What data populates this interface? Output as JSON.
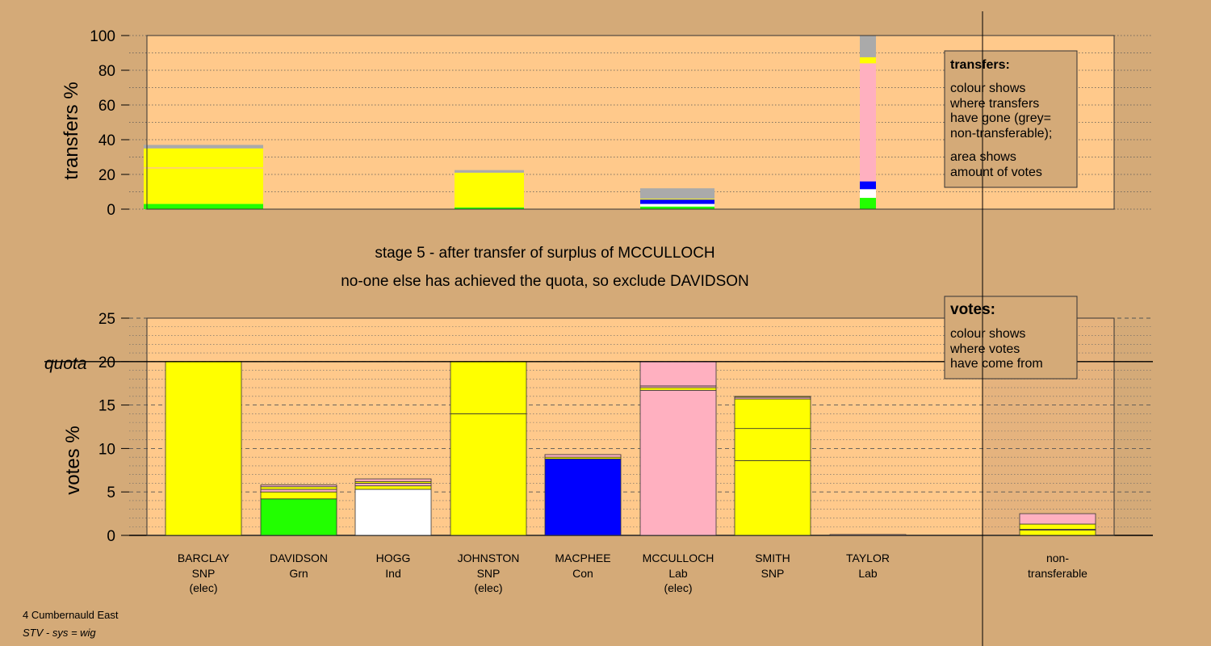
{
  "colors": {
    "background": "#d4aa78",
    "plot_bg": "#ffc98b",
    "SNP": "#ffff00",
    "Grn": "#22ff00",
    "Ind": "#ffffff",
    "Con": "#0000ff",
    "Lab": "#ffb0c0",
    "non_transferable": "#aaaaaa"
  },
  "stage_text": {
    "line1": "stage 5 - after transfer of surplus of MCCULLOCH",
    "line2": "no-one else has achieved the quota, so exclude DAVIDSON"
  },
  "footer": {
    "ward": "4 Cumbernauld East",
    "system": "STV - sys = wig"
  },
  "chart_data": [
    {
      "type": "bar",
      "stacked": true,
      "ylabel": "transfers %",
      "ylim": [
        0,
        100
      ],
      "yticks": [
        0,
        20,
        40,
        60,
        80,
        100
      ],
      "grid": true,
      "legend": {
        "position": "top-right",
        "title": "transfers:",
        "lines": [
          "colour shows",
          "where transfers",
          "have gone (grey=",
          "non-transferable);"
        ],
        "lines2": [
          "area shows",
          "amount of votes"
        ]
      },
      "bars": [
        {
          "recipient_of": "DAVIDSON",
          "segments": [
            {
              "party": "Grn",
              "value": 3
            },
            {
              "party": "SNP",
              "value": 0.5
            },
            {
              "party": "SNP",
              "value": 20
            },
            {
              "party": "Lab",
              "value": 0.5
            },
            {
              "party": "SNP",
              "value": 11
            },
            {
              "party": "non_transferable",
              "value": 2
            }
          ]
        },
        {
          "recipient_of": "MACPHEE",
          "segments": [
            {
              "party": "Grn",
              "value": 1
            },
            {
              "party": "SNP",
              "value": 20
            },
            {
              "party": "non_transferable",
              "value": 1.5
            }
          ]
        },
        {
          "recipient_of": "SMITH",
          "segments": [
            {
              "party": "Grn",
              "value": 1.5
            },
            {
              "party": "Ind",
              "value": 1.5
            },
            {
              "party": "Con",
              "value": 2.5
            },
            {
              "party": "SNP",
              "value": 0.5
            },
            {
              "party": "non_transferable",
              "value": 6
            }
          ]
        },
        {
          "recipient_of": "MCCULLOCH",
          "segments": [
            {
              "party": "Grn",
              "value": 6.5
            },
            {
              "party": "Ind",
              "value": 5
            },
            {
              "party": "Con",
              "value": 4.5
            },
            {
              "party": "Lab",
              "value": 68
            },
            {
              "party": "SNP",
              "value": 3.5
            },
            {
              "party": "non_transferable",
              "value": 12.5
            }
          ]
        }
      ]
    },
    {
      "type": "bar",
      "stacked": true,
      "ylabel": "votes %",
      "ylim": [
        0,
        25
      ],
      "yticks": [
        0,
        5,
        10,
        15,
        20,
        25
      ],
      "quota": 20,
      "quota_label": "quota",
      "grid": true,
      "legend": {
        "position": "top-right",
        "title": "votes:",
        "lines": [
          "colour shows",
          "where votes",
          "have come from"
        ]
      },
      "candidates": [
        {
          "name": "BARCLAY",
          "party": "SNP",
          "note": "(elec)",
          "segments": [
            {
              "party": "SNP",
              "value": 20
            }
          ]
        },
        {
          "name": "DAVIDSON",
          "party": "Grn",
          "note": "",
          "segments": [
            {
              "party": "Grn",
              "value": 4.2
            },
            {
              "party": "SNP",
              "value": 0.8
            },
            {
              "party": "Lab",
              "value": 0.3
            },
            {
              "party": "SNP",
              "value": 0.3
            },
            {
              "party": "Lab",
              "value": 0.2
            }
          ]
        },
        {
          "name": "HOGG",
          "party": "Ind",
          "note": "",
          "segments": [
            {
              "party": "Ind",
              "value": 5.3
            },
            {
              "party": "SNP",
              "value": 0.4
            },
            {
              "party": "Lab",
              "value": 0.3
            },
            {
              "party": "SNP",
              "value": 0.2
            },
            {
              "party": "Lab",
              "value": 0.3
            }
          ]
        },
        {
          "name": "JOHNSTON",
          "party": "SNP",
          "note": "(elec)",
          "segments": [
            {
              "party": "SNP",
              "value": 14
            },
            {
              "party": "SNP",
              "value": 6
            }
          ]
        },
        {
          "name": "MACPHEE",
          "party": "Con",
          "note": "",
          "segments": [
            {
              "party": "Con",
              "value": 8.8
            },
            {
              "party": "SNP",
              "value": 0.2
            },
            {
              "party": "Lab",
              "value": 0.3
            }
          ]
        },
        {
          "name": "MCCULLOCH",
          "party": "Lab",
          "note": "(elec)",
          "segments": [
            {
              "party": "Lab",
              "value": 16.7
            },
            {
              "party": "SNP",
              "value": 0.3
            },
            {
              "party": "Lab",
              "value": 0.2
            },
            {
              "party": "Lab",
              "value": 2.8
            }
          ]
        },
        {
          "name": "SMITH",
          "party": "SNP",
          "note": "",
          "segments": [
            {
              "party": "SNP",
              "value": 8.6
            },
            {
              "party": "SNP",
              "value": 3.7
            },
            {
              "party": "SNP",
              "value": 3.4
            },
            {
              "party": "Lab",
              "value": 0.2
            },
            {
              "party": "SNP",
              "value": 0.1
            }
          ]
        },
        {
          "name": "TAYLOR",
          "party": "Lab",
          "note": "",
          "segments": [
            {
              "party": "Lab",
              "value": 0.1
            }
          ]
        }
      ],
      "non_transferable": {
        "label1": "non-",
        "label2": "transferable",
        "segments": [
          {
            "party": "SNP",
            "value": 0.6
          },
          {
            "party": "Lab",
            "value": 0.1
          },
          {
            "party": "SNP",
            "value": 0.6
          },
          {
            "party": "Lab",
            "value": 1.2
          }
        ]
      }
    }
  ]
}
